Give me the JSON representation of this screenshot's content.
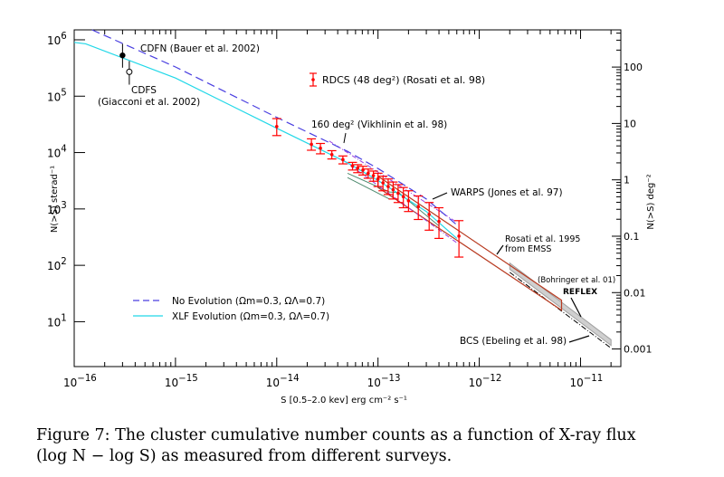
{
  "chart_data": {
    "type": "line",
    "title": "",
    "xlabel": "S [0.5–2.0 kev] erg cm⁻² s⁻¹",
    "ylabel": "N(>S) sterad⁻¹",
    "y2label": "N(>S) deg⁻²",
    "xscale": "log",
    "yscale": "log",
    "xlim": [
      1e-16,
      2.5e-11
    ],
    "ylim": [
      1.6,
      1500000.0
    ],
    "x_ticks": [
      {
        "exp": "−16",
        "value": 1e-16
      },
      {
        "exp": "−15",
        "value": 1e-15
      },
      {
        "exp": "−14",
        "value": 1e-14
      },
      {
        "exp": "−13",
        "value": 1e-13
      },
      {
        "exp": "−12",
        "value": 1e-12
      },
      {
        "exp": "−11",
        "value": 1e-11
      }
    ],
    "y_ticks": [
      {
        "exp": "6",
        "value": 1000000.0
      },
      {
        "exp": "5",
        "value": 100000.0
      },
      {
        "exp": "4",
        "value": 10000.0
      },
      {
        "exp": "3",
        "value": 1000.0
      },
      {
        "exp": "2",
        "value": 100.0
      },
      {
        "exp": "1",
        "value": 10.0
      }
    ],
    "y2_ticks": [
      {
        "label": "100",
        "value_sr": 328280
      },
      {
        "label": "10",
        "value_sr": 32828
      },
      {
        "label": "1",
        "value_sr": 3282.8
      },
      {
        "label": "0.1",
        "value_sr": 328.28
      },
      {
        "label": "0.01",
        "value_sr": 32.828
      },
      {
        "label": "0.001",
        "value_sr": 3.2828
      }
    ],
    "grid": false,
    "legend_position": "bottom-left",
    "legend": [
      {
        "name": "No Evolution (Ωm=0.3, ΩΛ=0.7)",
        "style": "dashed",
        "color": "#4a3fe0"
      },
      {
        "name": "XLF Evolution (Ωm=0.3, ΩΛ=0.7)",
        "style": "solid",
        "color": "#22d8e8"
      }
    ],
    "series": [
      {
        "name": "No Evolution",
        "style": "dashed",
        "color": "#4a3fe0",
        "x": [
          1.5e-16,
          1e-15,
          1e-14,
          5e-14,
          1e-13,
          3e-13,
          6e-13
        ],
        "y": [
          1500000.0,
          330000.0,
          42000.0,
          10500.0,
          5200,
          1500,
          520
        ]
      },
      {
        "name": "XLF Evolution",
        "style": "solid",
        "color": "#22d8e8",
        "x": [
          1e-16,
          1.3e-16,
          1e-15,
          1e-14,
          5e-14,
          1e-13,
          3e-13,
          6e-13
        ],
        "y": [
          900000.0,
          850000.0,
          210000.0,
          27000.0,
          6600,
          3200,
          900,
          300
        ]
      },
      {
        "name": "RDCS (48 deg²) (Rosati et al. 98)",
        "style": "errorbar",
        "color": "#ff0000",
        "points": [
          {
            "x": 1e-14,
            "y": 29000,
            "lo": 20000,
            "hi": 40000
          },
          {
            "x": 2.2e-14,
            "y": 14000,
            "lo": 11000,
            "hi": 17500
          },
          {
            "x": 2.7e-14,
            "y": 12000,
            "lo": 9500,
            "hi": 14500
          },
          {
            "x": 3.5e-14,
            "y": 9200,
            "lo": 7700,
            "hi": 10800
          },
          {
            "x": 4.5e-14,
            "y": 7500,
            "lo": 6300,
            "hi": 8700
          },
          {
            "x": 5.6e-14,
            "y": 5800,
            "lo": 4900,
            "hi": 6700
          },
          {
            "x": 6.3e-14,
            "y": 5300,
            "lo": 4400,
            "hi": 6100
          },
          {
            "x": 7.1e-14,
            "y": 4900,
            "lo": 4000,
            "hi": 5700
          },
          {
            "x": 8e-14,
            "y": 4300,
            "lo": 3500,
            "hi": 5100
          },
          {
            "x": 9e-14,
            "y": 3900,
            "lo": 3100,
            "hi": 4700
          },
          {
            "x": 1e-13,
            "y": 3400,
            "lo": 2500,
            "hi": 4300
          },
          {
            "x": 1.12e-13,
            "y": 2900,
            "lo": 2100,
            "hi": 3800
          },
          {
            "x": 1.26e-13,
            "y": 2500,
            "lo": 1800,
            "hi": 3400
          },
          {
            "x": 1.41e-13,
            "y": 2200,
            "lo": 1500,
            "hi": 3000
          },
          {
            "x": 1.58e-13,
            "y": 1900,
            "lo": 1300,
            "hi": 2700
          },
          {
            "x": 1.78e-13,
            "y": 1650,
            "lo": 1050,
            "hi": 2400
          },
          {
            "x": 2e-13,
            "y": 1400,
            "lo": 900,
            "hi": 2100
          },
          {
            "x": 2.5e-13,
            "y": 1100,
            "lo": 650,
            "hi": 1700
          },
          {
            "x": 3.2e-13,
            "y": 800,
            "lo": 420,
            "hi": 1300
          },
          {
            "x": 4e-13,
            "y": 600,
            "lo": 300,
            "hi": 1050
          },
          {
            "x": 6.3e-13,
            "y": 330,
            "lo": 140,
            "hi": 620
          }
        ]
      },
      {
        "name": "160 deg² (Vikhlinin et al. 98)",
        "style": "dash-dot band",
        "color": "#9a3fe0",
        "upper": {
          "x": [
            3.3e-14,
            6e-13
          ],
          "y": [
            16000,
            580
          ]
        },
        "lower": {
          "x": [
            4.5e-14,
            6e-13
          ],
          "y": [
            7400,
            250
          ]
        }
      },
      {
        "name": "WARPS (Jones et al. 97)",
        "style": "solid band",
        "color": "#4e8a6e",
        "upper": {
          "x": [
            5e-14,
            1.3e-13,
            1.6e-13,
            4e-13
          ],
          "y": [
            4300,
            2000,
            1950,
            500
          ]
        },
        "lower": {
          "x": [
            5e-14,
            1.3e-13
          ],
          "y": [
            3600,
            1500
          ]
        }
      },
      {
        "name": "Rosati et al. 1995 from EMSS",
        "style": "band outline",
        "color": "#b83a20",
        "upper": {
          "x": [
            1e-13,
            6.5e-12
          ],
          "y": [
            3800,
            24
          ]
        },
        "lower": {
          "x": [
            1e-13,
            6.5e-12
          ],
          "y": [
            2400,
            16
          ]
        }
      },
      {
        "name": "REFLEX (Bohringer et al. 01)",
        "style": "gray band",
        "color": "#a8a8a8",
        "upper": {
          "x": [
            2e-12,
            2e-11
          ],
          "y": [
            110,
            4.8
          ]
        },
        "lower": {
          "x": [
            2e-12,
            2e-11
          ],
          "y": [
            85,
            3.8
          ]
        }
      },
      {
        "name": "BCS (Ebeling et al. 98)",
        "style": "dash-dot",
        "color": "#000000",
        "x": [
          2e-12,
          2e-11
        ],
        "y": [
          75,
          3.4
        ]
      },
      {
        "name": "CDFN (Bauer et al. 2002)",
        "style": "filled point",
        "color": "#000000",
        "points": [
          {
            "x": 3e-16,
            "y": 530000.0,
            "lo": 320000.0,
            "hi": 850000.0
          }
        ]
      },
      {
        "name": "CDFS (Giacconi et al. 2002)",
        "style": "open point",
        "color": "#000000",
        "points": [
          {
            "x": 3.5e-16,
            "y": 270000.0,
            "lo": 160000.0,
            "hi": 420000.0
          }
        ]
      }
    ],
    "annotations": [
      {
        "id": "cdfn",
        "text": "CDFN  (Bauer et al. 2002)"
      },
      {
        "id": "cdfs1",
        "text": "CDFS"
      },
      {
        "id": "cdfs2",
        "text": "(Giacconi et al. 2002)"
      },
      {
        "id": "rdcs",
        "text": "RDCS (48 deg²) (Rosati et al. 98)"
      },
      {
        "id": "vik",
        "text": "160 deg² (Vikhlinin et al. 98)"
      },
      {
        "id": "warps",
        "text": "WARPS (Jones et al. 97)"
      },
      {
        "id": "emss1",
        "text": "Rosati et al. 1995"
      },
      {
        "id": "emss2",
        "text": "from EMSS"
      },
      {
        "id": "reflex1",
        "text": "(Bohringer et al. 01)"
      },
      {
        "id": "reflex2",
        "text": "REFLEX"
      },
      {
        "id": "bcs",
        "text": "BCS (Ebeling et al. 98)"
      }
    ]
  },
  "caption": {
    "line1": "Figure 7:  The cluster cumulative number counts as a function of X-ray flux",
    "line2": "(log N − log S) as measured from different surveys."
  }
}
